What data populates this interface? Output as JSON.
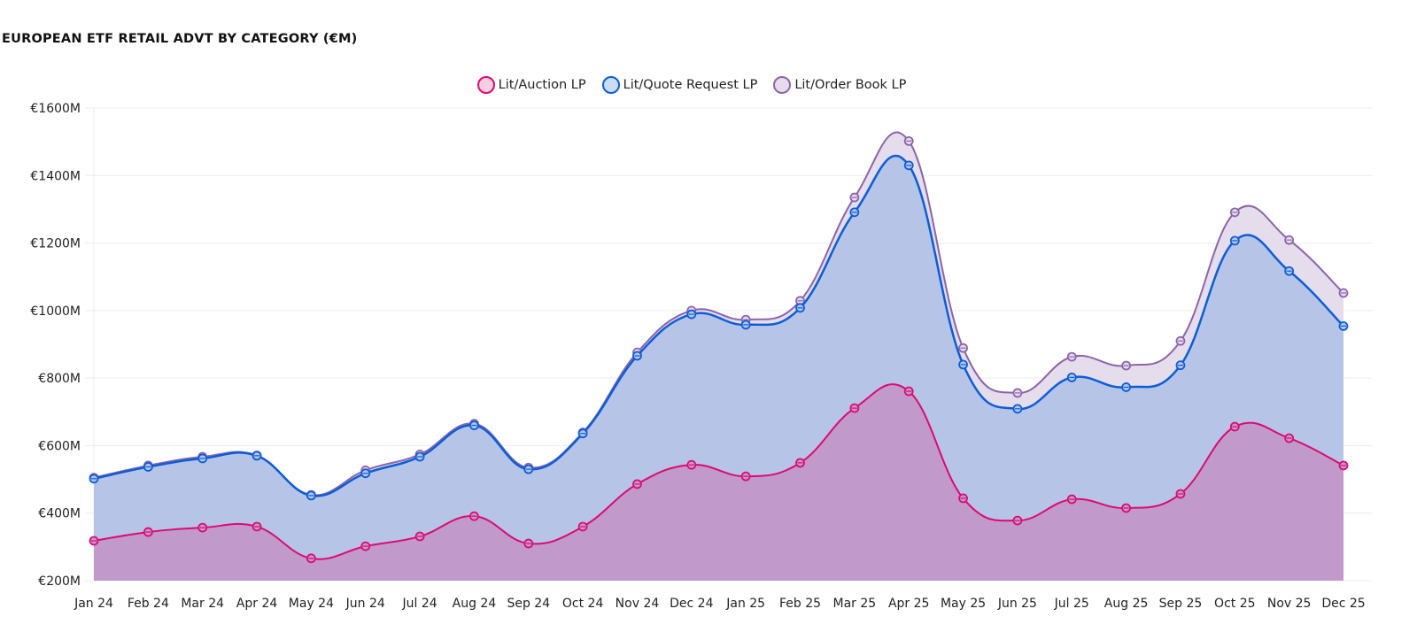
{
  "title": "EUROPEAN ETF RETAIL ADVT BY CATEGORY (€M)",
  "colors": {
    "auction_line": "#dd0a73",
    "auction_fill": "#c19acb",
    "quote_line": "#0a5ed7",
    "quote_fill": "#b6c4e7",
    "orderbook_line": "#8c64ab",
    "orderbook_fill": "#e5dcec",
    "grid": "#ececec"
  },
  "chart_data": {
    "type": "area",
    "stacked": true,
    "title": "EUROPEAN ETF RETAIL ADVT BY CATEGORY (€M)",
    "xlabel": "",
    "ylabel": "",
    "y_tick_prefix": "€",
    "y_tick_suffix": "M",
    "ylim": [
      200,
      1600
    ],
    "y_ticks": [
      200,
      400,
      600,
      800,
      1000,
      1200,
      1400,
      1600
    ],
    "y_tick_labels": [
      "€200M",
      "€400M",
      "€600M",
      "€800M",
      "€1000M",
      "€1200M",
      "€1400M",
      "€1600M"
    ],
    "grid": true,
    "legend_position": "top-center",
    "smooth": true,
    "categories": [
      "Jan 24",
      "Feb 24",
      "Mar 24",
      "Apr 24",
      "May 24",
      "Jun 24",
      "Jul 24",
      "Aug 24",
      "Sep 24",
      "Oct 24",
      "Nov 24",
      "Dec 24",
      "Jan 25",
      "Feb 25",
      "Mar 25",
      "Apr 25",
      "May 25",
      "Jun 25",
      "Jul 25",
      "Aug 25",
      "Sep 25",
      "Oct 25",
      "Nov 25",
      "Dec 25"
    ],
    "series": [
      {
        "name": "Lit/Auction LP",
        "key": "auction",
        "values": [
          318,
          344,
          357,
          360,
          266,
          302,
          331,
          391,
          310,
          360,
          486,
          543,
          509,
          549,
          711,
          761,
          444,
          378,
          441,
          415,
          457,
          656,
          622,
          541
        ]
      },
      {
        "name": "Lit/Quote Request LP",
        "key": "quote",
        "values": [
          184,
          193,
          205,
          210,
          186,
          216,
          236,
          269,
          220,
          276,
          380,
          446,
          449,
          459,
          580,
          669,
          396,
          331,
          361,
          358,
          381,
          551,
          495,
          413
        ]
      },
      {
        "name": "Lit/Order Book LP",
        "key": "orderbook",
        "values": [
          3,
          4,
          5,
          1,
          2,
          9,
          7,
          5,
          5,
          3,
          10,
          11,
          15,
          21,
          44,
          72,
          49,
          47,
          61,
          64,
          72,
          84,
          92,
          98
        ]
      }
    ]
  }
}
